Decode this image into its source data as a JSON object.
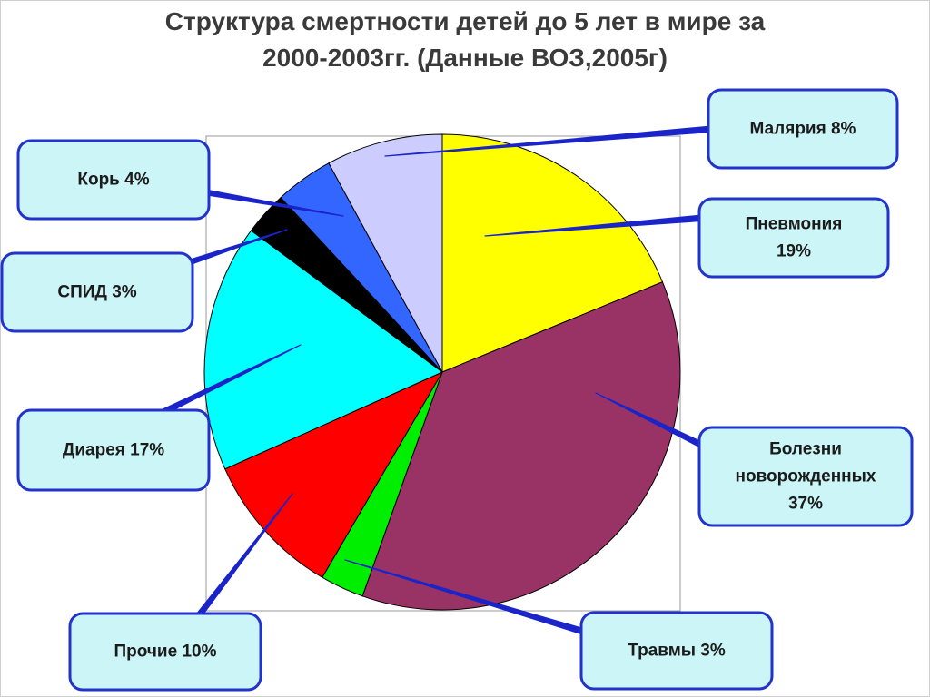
{
  "title_line1": "Структура смертности детей до 5 лет в мире  за",
  "title_line2": "2000-2003гг. (Данные ВОЗ,2005г)",
  "colors": {
    "callout_fill": "#ccf5f7",
    "callout_border": "#2233cc",
    "leader": "#1a24c8"
  },
  "chart_data": {
    "type": "pie",
    "title": "Структура смертности детей до 5 лет в мире  за 2000-2003гг. (Данные ВОЗ,2005г)",
    "unit": "%",
    "slices": [
      {
        "key": "pneumonia",
        "label_lines": [
          "Пневмония",
          "19%"
        ],
        "value": 19,
        "color": "#ffff00"
      },
      {
        "key": "newborn",
        "label_lines": [
          "Болезни",
          "новорожденных",
          "37%"
        ],
        "value": 37,
        "color": "#993366"
      },
      {
        "key": "injuries",
        "label_lines": [
          "Травмы 3%"
        ],
        "value": 3,
        "color": "#00ee00"
      },
      {
        "key": "other",
        "label_lines": [
          "Прочие 10%"
        ],
        "value": 10,
        "color": "#ff0000"
      },
      {
        "key": "diarrhea",
        "label_lines": [
          "Диарея 17%"
        ],
        "value": 17,
        "color": "#00ffff"
      },
      {
        "key": "aids",
        "label_lines": [
          "СПИД 3%"
        ],
        "value": 3,
        "color": "#000000"
      },
      {
        "key": "measles",
        "label_lines": [
          "Корь 4%"
        ],
        "value": 4,
        "color": "#3366ff"
      },
      {
        "key": "malaria",
        "label_lines": [
          "Малярия 8%"
        ],
        "value": 8,
        "color": "#ccccff"
      }
    ]
  }
}
